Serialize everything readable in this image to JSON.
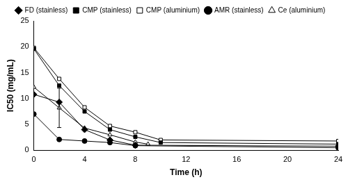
{
  "chart_data": {
    "type": "line",
    "x_label": "Time (h)",
    "y_label": "IC50 (mg/mL)",
    "xlim": [
      0,
      24
    ],
    "xticks": [
      0,
      4,
      8,
      12,
      16,
      20,
      24
    ],
    "ylim": [
      0,
      25
    ],
    "yticks": [
      0,
      5,
      10,
      15,
      20,
      25
    ],
    "grid": false,
    "legend": "top",
    "series": [
      {
        "name": "FD (stainless)",
        "color": "#000000",
        "marker": "diamond",
        "x": [
          0,
          2,
          4,
          6,
          8,
          24
        ],
        "values": [
          10.8,
          9.3,
          4.0,
          2.0,
          1.0,
          0.8
        ]
      },
      {
        "name": "CMP (stainless)",
        "color": "#000000",
        "marker": "square",
        "x": [
          0,
          2,
          4,
          6,
          8,
          10,
          24
        ],
        "values": [
          19.6,
          12.5,
          7.5,
          4.0,
          2.6,
          1.5,
          1.2
        ]
      },
      {
        "name": "CMP (aluminium)",
        "color": "#000000",
        "marker": "open square",
        "x": [
          0,
          2,
          4,
          6,
          8,
          10,
          24
        ],
        "values": [
          19.8,
          13.8,
          8.3,
          4.7,
          3.5,
          2.0,
          1.8
        ]
      },
      {
        "name": "AMR (stainless)",
        "color": "#000000",
        "marker": "circle",
        "x": [
          0,
          2,
          4,
          6,
          8,
          24
        ],
        "values": [
          7.0,
          2.1,
          1.8,
          1.5,
          0.9,
          0.5
        ]
      },
      {
        "name": "Ce (aluminium)",
        "color": "#000000",
        "marker": "open triangle",
        "x": [
          0,
          2,
          4,
          6,
          8,
          9
        ],
        "values": [
          12.2,
          8.2,
          4.3,
          3.0,
          1.6,
          1.2
        ],
        "errors": [
          null,
          3.8,
          null,
          null,
          null,
          null
        ]
      }
    ]
  }
}
